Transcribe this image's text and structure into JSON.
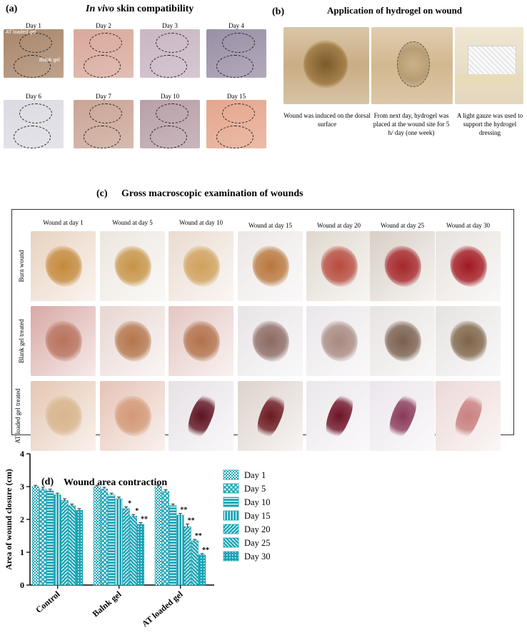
{
  "panel_a": {
    "label": "(a)",
    "title_italic": "In vivo",
    "title_rest": " skin compatibility",
    "days": [
      "Day 1",
      "Day 2",
      "Day 3",
      "Day 4",
      "Day 6",
      "Day 7",
      "Day 10",
      "Day 15"
    ],
    "oval_labels": {
      "top": "AT loaded gel",
      "bottom": "Blank gel"
    },
    "colors": [
      "#a9866a",
      "#d9a99b",
      "#c9b6c4",
      "#9a8fa6",
      "#dcdbe3",
      "#cba596",
      "#b8a0a8",
      "#e5a68d"
    ]
  },
  "panel_b": {
    "label": "(b)",
    "title": "Application of hydrogel on wound",
    "captions": [
      "Wound was induced on the dorsal surface",
      "From next day, hydrogel was placed at the wound site for 5 h/ day (one week)",
      "A light gauze was used to support the hydrogel dressing"
    ]
  },
  "panel_c": {
    "label": "(c)",
    "title": "Gross macroscopic examination of wounds",
    "columns": [
      "Wound at day 1",
      "Wound at day 5",
      "Wound at day 10",
      "Wound at day 15",
      "Wound at day 20",
      "Wound at day 25",
      "Wound at day 30"
    ],
    "rows": [
      "Burn wound",
      "Blank gel treated",
      "AT loaded gel treated"
    ],
    "row_backgrounds": [
      [
        "#e8d2be",
        "#ece6de",
        "#eadcd0",
        "#ece7e6",
        "#dfd8ce",
        "#d8cfc6",
        "#e7e2de"
      ],
      [
        "#d8a8a4",
        "#e8d6d2",
        "#e4c6c2",
        "#e8e4e6",
        "#ebe6ea",
        "#e7e3e2",
        "#e6e2e2"
      ],
      [
        "#e5c6b2",
        "#e6c3b6",
        "#e6e1e6",
        "#ddd2cc",
        "#ebe7ec",
        "#ebe6ec",
        "#ecd9d7"
      ]
    ],
    "wound_colors": [
      [
        "#c48a3c",
        "#c79447",
        "#d0a15c",
        "#b9773d",
        "#b84b3e",
        "#a5262a",
        "#a21820"
      ],
      [
        "#b8735f",
        "#b4764b",
        "#b2724c",
        "#8c6a62",
        "#a88a80",
        "#7a5f4d",
        "#7e6448"
      ],
      [
        "#d8b58d",
        "#d39978",
        "#5e1220",
        "#6b1a20",
        "#6e1226",
        "#8a3a5a",
        "#c98080"
      ]
    ]
  },
  "panel_d": {
    "label": "(d)",
    "title": "Wound area contraction"
  },
  "chart_data": {
    "type": "bar",
    "title": "Wound area contraction",
    "ylabel": "Area of wound closure (cm)",
    "xlabel": "",
    "ylim": [
      0,
      4
    ],
    "yticks": [
      0,
      1,
      2,
      3,
      4
    ],
    "categories": [
      "Control",
      "Balnk gel",
      "AT loaded gel"
    ],
    "color": "#1aa3b5",
    "legend_position": "right",
    "series": [
      {
        "name": "Day 1",
        "values": [
          3.0,
          3.0,
          3.0
        ],
        "errors": [
          0.04,
          0.04,
          0.04
        ],
        "pattern": "check"
      },
      {
        "name": "Day 5",
        "values": [
          2.93,
          2.93,
          2.85
        ],
        "errors": [
          0.05,
          0.05,
          0.05
        ],
        "pattern": "cross"
      },
      {
        "name": "Day 10",
        "values": [
          2.87,
          2.75,
          2.42
        ],
        "errors": [
          0.05,
          0.05,
          0.05
        ],
        "pattern": "hlines"
      },
      {
        "name": "Day 15",
        "values": [
          2.75,
          2.63,
          2.13
        ],
        "errors": [
          0.05,
          0.05,
          0.05
        ],
        "pattern": "vlines"
      },
      {
        "name": "Day 20",
        "values": [
          2.58,
          2.33,
          1.78
        ],
        "errors": [
          0.05,
          0.05,
          0.08
        ],
        "pattern": "diag"
      },
      {
        "name": "Day 25",
        "values": [
          2.42,
          2.1,
          1.35
        ],
        "errors": [
          0.05,
          0.05,
          0.04
        ],
        "pattern": "diag2"
      },
      {
        "name": "Day 30",
        "values": [
          2.28,
          1.85,
          0.92
        ],
        "errors": [
          0.05,
          0.05,
          0.04
        ],
        "pattern": "dots"
      }
    ],
    "annotations": [
      {
        "category": "Balnk gel",
        "series": "Day 20",
        "text": "*"
      },
      {
        "category": "Balnk gel",
        "series": "Day 25",
        "text": "*"
      },
      {
        "category": "Balnk gel",
        "series": "Day 30",
        "text": "**"
      },
      {
        "category": "AT loaded gel",
        "series": "Day 15",
        "text": "**"
      },
      {
        "category": "AT loaded gel",
        "series": "Day 20",
        "text": "**"
      },
      {
        "category": "AT loaded gel",
        "series": "Day 25",
        "text": "**"
      },
      {
        "category": "AT loaded gel",
        "series": "Day 30",
        "text": "**"
      }
    ]
  }
}
